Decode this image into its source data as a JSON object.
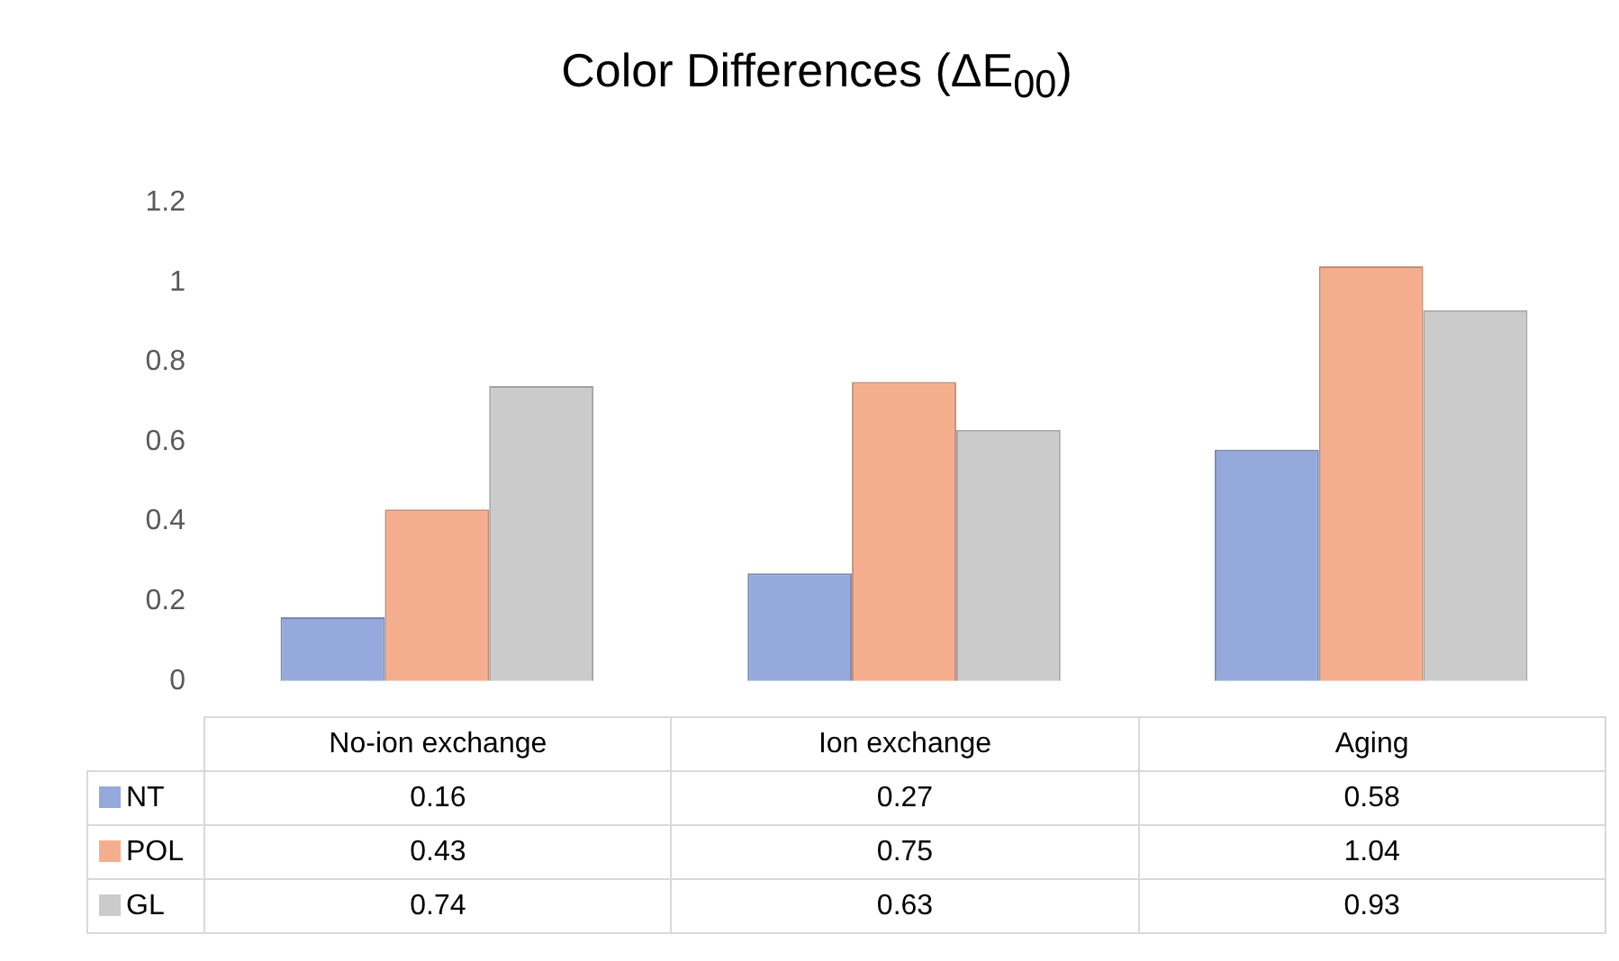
{
  "chart_data": {
    "type": "bar",
    "title": "Color Differences (ΔE$_{00}$)",
    "categories": [
      "No-ion exchange",
      "Ion exchange",
      "Aging"
    ],
    "series": [
      {
        "name": "NT",
        "color": "#96a9dc",
        "values": [
          0.16,
          0.27,
          0.58
        ]
      },
      {
        "name": "POL",
        "color": "#f4ae8e",
        "values": [
          0.43,
          0.75,
          1.04
        ]
      },
      {
        "name": "GL",
        "color": "#cbcbcb",
        "values": [
          0.74,
          0.63,
          0.93
        ]
      }
    ],
    "ylim": [
      0,
      1.2
    ],
    "yticks": [
      0,
      0.2,
      0.4,
      0.6,
      0.8,
      1,
      1.2
    ],
    "grid": false,
    "legend": "bottom",
    "data_labels": true
  }
}
